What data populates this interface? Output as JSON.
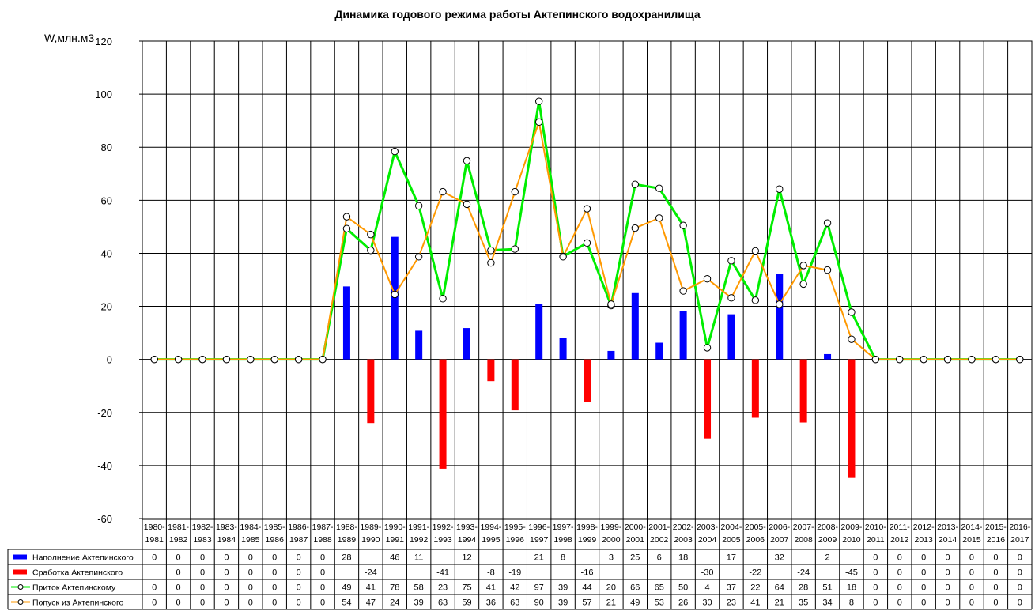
{
  "chart_data": {
    "type": "bar+line",
    "title": "Динамика годового режима работы Актепинского водохранилища",
    "ylabel": "W,млн.м3",
    "ylim": [
      -60,
      120
    ],
    "yticks": [
      120,
      100,
      80,
      60,
      40,
      20,
      0,
      -20,
      -40,
      -60
    ],
    "grid": true,
    "categories": [
      [
        "1980-",
        "1981"
      ],
      [
        "1981-",
        "1982"
      ],
      [
        "1982-",
        "1983"
      ],
      [
        "1983-",
        "1984"
      ],
      [
        "1984-",
        "1985"
      ],
      [
        "1985-",
        "1986"
      ],
      [
        "1986-",
        "1987"
      ],
      [
        "1987-",
        "1988"
      ],
      [
        "1988-",
        "1989"
      ],
      [
        "1989-",
        "1990"
      ],
      [
        "1990-",
        "1991"
      ],
      [
        "1991-",
        "1992"
      ],
      [
        "1992-",
        "1993"
      ],
      [
        "1993-",
        "1994"
      ],
      [
        "1994-",
        "1995"
      ],
      [
        "1995-",
        "1996"
      ],
      [
        "1996-",
        "1997"
      ],
      [
        "1997-",
        "1998"
      ],
      [
        "1998-",
        "1999"
      ],
      [
        "1999-",
        "2000"
      ],
      [
        "2000-",
        "2001"
      ],
      [
        "2001-",
        "2002"
      ],
      [
        "2002-",
        "2003"
      ],
      [
        "2003-",
        "2004"
      ],
      [
        "2004-",
        "2005"
      ],
      [
        "2005-",
        "2006"
      ],
      [
        "2006-",
        "2007"
      ],
      [
        "2007-",
        "2008"
      ],
      [
        "2008-",
        "2009"
      ],
      [
        "2009-",
        "2010"
      ],
      [
        "2010-",
        "2011"
      ],
      [
        "2011-",
        "2012"
      ],
      [
        "2012-",
        "2013"
      ],
      [
        "2013-",
        "2014"
      ],
      [
        "2014-",
        "2015"
      ],
      [
        "2015-",
        "2016"
      ],
      [
        "2016-",
        "2017"
      ]
    ],
    "series": [
      {
        "name": "Наполнение Актепинского",
        "kind": "bar",
        "color": "#0000ff",
        "values": [
          0,
          0,
          0,
          0,
          0,
          0,
          0,
          0,
          28,
          null,
          46,
          11,
          null,
          12,
          null,
          null,
          21,
          8,
          null,
          3,
          25,
          6,
          18,
          null,
          17,
          null,
          32,
          null,
          2,
          null,
          0,
          0,
          0,
          0,
          0,
          0,
          0
        ],
        "plot_values": [
          0,
          0,
          0,
          0,
          0,
          0,
          0,
          0,
          27.5,
          null,
          46.2,
          10.8,
          null,
          11.8,
          null,
          null,
          21.0,
          8.2,
          null,
          3.2,
          25.0,
          6.3,
          18.1,
          null,
          17.0,
          null,
          32.2,
          null,
          2.0,
          null,
          0,
          0,
          0,
          0,
          0,
          0,
          0
        ]
      },
      {
        "name": "Сработка Актепинского",
        "kind": "bar",
        "color": "#ff0000",
        "values": [
          null,
          0,
          0,
          0,
          0,
          0,
          0,
          0,
          null,
          -24,
          null,
          null,
          -41,
          null,
          -8,
          -19,
          null,
          null,
          -16,
          null,
          null,
          null,
          null,
          -30,
          null,
          -22,
          null,
          -24,
          null,
          -45,
          0,
          0,
          0,
          0,
          0,
          0,
          0
        ],
        "plot_values": [
          null,
          0,
          0,
          0,
          0,
          0,
          0,
          0,
          null,
          -24.0,
          null,
          null,
          -41.2,
          null,
          -8.2,
          -19.2,
          null,
          null,
          -16.0,
          null,
          null,
          null,
          null,
          -29.8,
          null,
          -22.0,
          null,
          -23.8,
          null,
          -44.7,
          0,
          0,
          0,
          0,
          0,
          0,
          0
        ]
      },
      {
        "name": "Приток Актепинскому",
        "kind": "line",
        "color": "#00ee00",
        "values": [
          0,
          0,
          0,
          0,
          0,
          0,
          0,
          0,
          49,
          41,
          78,
          58,
          23,
          75,
          41,
          42,
          97,
          39,
          44,
          20,
          66,
          65,
          50,
          4,
          37,
          22,
          64,
          28,
          51,
          18,
          0,
          0,
          0,
          0,
          0,
          0,
          0
        ],
        "plot_values": [
          0,
          0,
          0,
          0,
          0,
          0,
          0,
          0,
          49.3,
          41.1,
          78.4,
          57.9,
          22.9,
          74.9,
          41.1,
          41.6,
          97.3,
          38.8,
          43.9,
          20.3,
          66.0,
          64.5,
          50.5,
          4.4,
          37.2,
          22.3,
          64.2,
          28.4,
          51.4,
          17.8,
          0,
          0,
          0,
          0,
          0,
          0,
          0
        ]
      },
      {
        "name": "Попуск из Актепинского",
        "kind": "line",
        "color": "#ff9900",
        "values": [
          0,
          0,
          0,
          0,
          0,
          0,
          0,
          0,
          54,
          47,
          24,
          39,
          63,
          59,
          36,
          63,
          90,
          39,
          57,
          21,
          49,
          53,
          26,
          30,
          23,
          41,
          21,
          35,
          34,
          8,
          0,
          0,
          0,
          0,
          0,
          0,
          0
        ],
        "plot_values": [
          0,
          0,
          0,
          0,
          0,
          0,
          0,
          0,
          53.8,
          47.1,
          24.5,
          38.7,
          63.2,
          58.5,
          36.4,
          63.2,
          89.5,
          38.7,
          56.8,
          20.8,
          49.5,
          53.3,
          25.8,
          30.4,
          23.2,
          40.9,
          20.8,
          35.4,
          33.7,
          7.6,
          0,
          0,
          0,
          0,
          0,
          0,
          0
        ]
      }
    ],
    "legend_position": "data-table-left"
  }
}
